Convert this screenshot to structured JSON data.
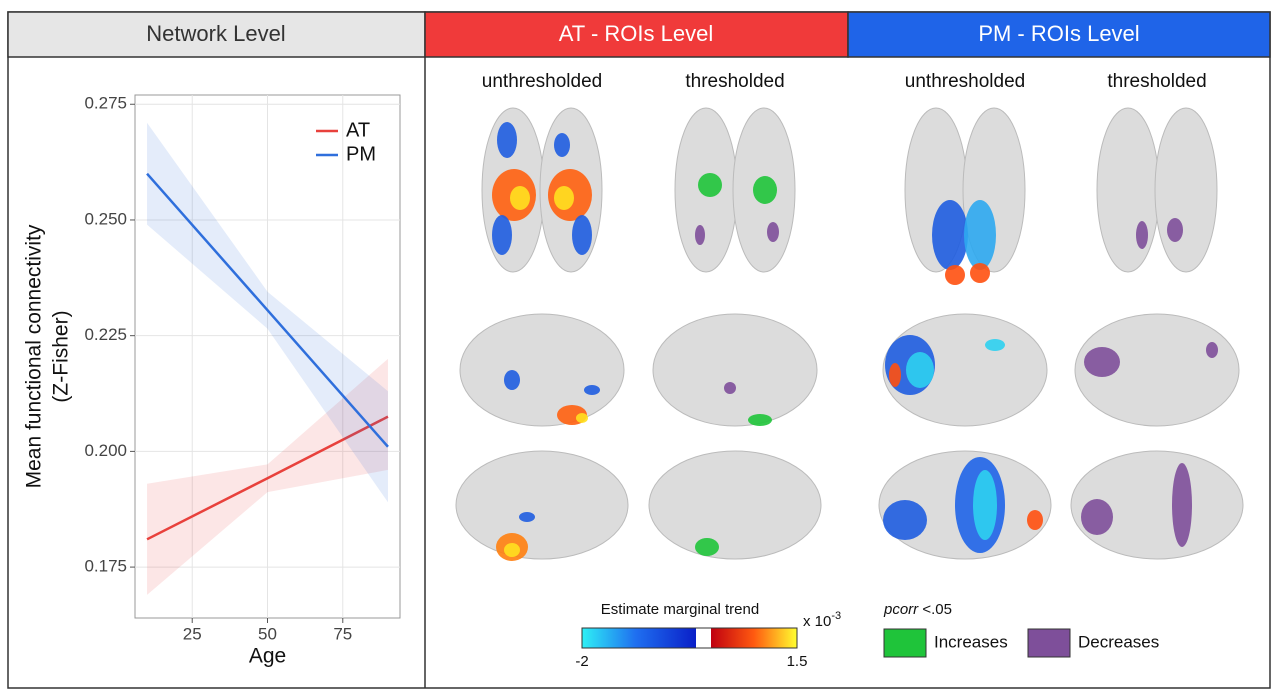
{
  "chart_data": {
    "type": "line",
    "xlabel": "Age",
    "ylabel": [
      "Mean functional connectivity",
      "(Z-Fisher)"
    ],
    "xlim": [
      6,
      94
    ],
    "xticks": [
      25,
      50,
      75
    ],
    "ylim": [
      0.164,
      0.277
    ],
    "yticks": [
      0.175,
      0.2,
      0.225,
      0.25,
      0.275
    ],
    "ytick_labels": [
      "0.175",
      "0.200",
      "0.225",
      "0.250",
      "0.275"
    ],
    "grid": true,
    "legend": "top-right",
    "series": [
      {
        "name": "AT",
        "color": "#e8413c",
        "x": [
          10,
          50,
          90
        ],
        "values": [
          0.181,
          0.1942,
          0.2075
        ],
        "lower": [
          0.169,
          0.1912,
          0.196
        ],
        "upper": [
          0.193,
          0.1972,
          0.22
        ]
      },
      {
        "name": "PM",
        "color": "#2f6fdc",
        "x": [
          10,
          50,
          90
        ],
        "values": [
          0.26,
          0.2305,
          0.201
        ],
        "lower": [
          0.249,
          0.2265,
          0.189
        ],
        "upper": [
          0.271,
          0.2345,
          0.213
        ]
      }
    ]
  },
  "headers": [
    "Network Level",
    "AT - ROIs Level",
    "PM - ROIs Level"
  ],
  "columns": [
    "unthresholded",
    "thresholded",
    "unthresholded",
    "thresholded"
  ],
  "colorbar": {
    "title": "Estimate marginal trend",
    "unit": "x 10",
    "exponent": "-3",
    "min_label": "-2",
    "max_label": "1.5"
  },
  "significance": {
    "label_italic": "pcorr",
    "label_rest": " <.05",
    "increases": "Increases",
    "decreases": "Decreases"
  }
}
